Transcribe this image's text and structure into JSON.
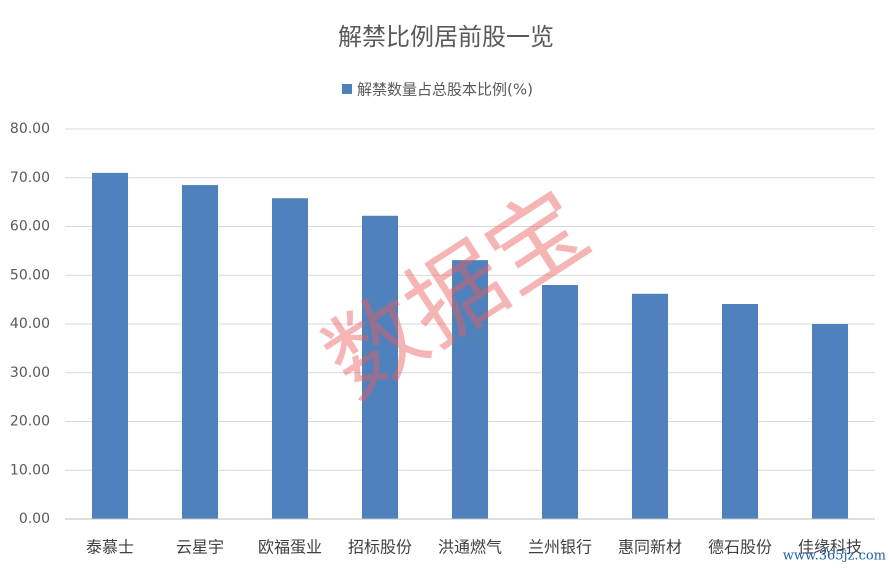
{
  "chart_data": {
    "type": "bar",
    "title": "解禁比例居前股一览",
    "categories": [
      "泰慕士",
      "云星宇",
      "欧福蛋业",
      "招标股份",
      "洪通燃气",
      "兰州银行",
      "惠同新材",
      "德石股份",
      "佳缘科技"
    ],
    "series": [
      {
        "name": "解禁数量占总股本比例(%)",
        "color": "#4f81bd",
        "values": [
          71.0,
          68.5,
          65.8,
          62.2,
          53.1,
          48.0,
          46.2,
          44.1,
          40.0
        ]
      }
    ],
    "ylim": [
      0,
      80
    ],
    "yticks": [
      {
        "value": 0,
        "label": "0.00"
      },
      {
        "value": 10,
        "label": "10.00"
      },
      {
        "value": 20,
        "label": "20.00"
      },
      {
        "value": 30,
        "label": "30.00"
      },
      {
        "value": 40,
        "label": "40.00"
      },
      {
        "value": 50,
        "label": "50.00"
      },
      {
        "value": 60,
        "label": "60.00"
      },
      {
        "value": 70,
        "label": "70.00"
      },
      {
        "value": 80,
        "label": "80.00"
      }
    ],
    "grid": true,
    "legend": "top",
    "watermark": "数据宝",
    "credit": "www.365jz.com"
  }
}
